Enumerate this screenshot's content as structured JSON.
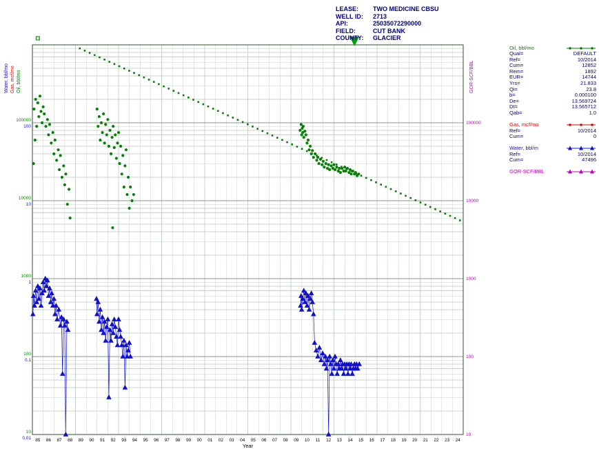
{
  "header": {
    "rows": [
      {
        "label": "LEASE:",
        "value": "TWO MEDICINE CBSU"
      },
      {
        "label": "WELL ID:",
        "value": "2713"
      },
      {
        "label": "API:",
        "value": "25035072290000"
      },
      {
        "label": "FIELD:",
        "value": "CUT BANK"
      },
      {
        "label": "COUNTY:",
        "value": "GLACIER"
      }
    ]
  },
  "legend": {
    "sections": [
      {
        "id": "oil",
        "name": "Oil, bbl/mo",
        "color": "#058205",
        "marker": "line-dot",
        "rows": [
          {
            "label": "Qual=",
            "value": "DEFAULT"
          },
          {
            "label": "Ref=",
            "value": "10/2014"
          },
          {
            "label": "Cum=",
            "value": "12852"
          },
          {
            "label": "Rem=",
            "value": "1892"
          },
          {
            "label": "EUR=",
            "value": "14744"
          },
          {
            "label": "Yrs=",
            "value": "21.833"
          },
          {
            "label": "Qi=",
            "value": "23.8"
          },
          {
            "label": "b=",
            "value": "0.000100"
          },
          {
            "label": "De=",
            "value": "13.569724"
          },
          {
            "label": "Dt=",
            "value": "13.565712"
          },
          {
            "label": "Qab=",
            "value": "1.0"
          }
        ]
      },
      {
        "id": "gas",
        "name": "Gas, mcf/mo",
        "color": "#DD0000",
        "marker": "line-dot",
        "rows": [
          {
            "label": "Ref=",
            "value": "10/2014"
          },
          {
            "label": "Cum=",
            "value": "0"
          }
        ]
      },
      {
        "id": "water",
        "name": "Water, bbl/m",
        "color": "#1111CC",
        "marker": "line-triangle",
        "rows": [
          {
            "label": "Ref=",
            "value": "10/2014"
          },
          {
            "label": "Cum=",
            "value": "47496"
          }
        ]
      },
      {
        "id": "gor",
        "name": "GOR-SCF/BBL",
        "color": "#BB00BB",
        "marker": "line-triangle",
        "rows": []
      }
    ]
  },
  "chart_data": {
    "type": "scatter",
    "xlabel": "Year",
    "gridlines": true,
    "legend_position": "right",
    "x_axis": {
      "min": 1985,
      "max": 2025,
      "tick_labels": [
        "85",
        "86",
        "87",
        "88",
        "89",
        "90",
        "91",
        "92",
        "93",
        "94",
        "95",
        "96",
        "97",
        "98",
        "99",
        "00",
        "01",
        "02",
        "03",
        "04",
        "05",
        "06",
        "07",
        "08",
        "09",
        "10",
        "11",
        "12",
        "13",
        "14",
        "15",
        "16",
        "17",
        "18",
        "19",
        "20",
        "21",
        "22",
        "23",
        "24"
      ]
    },
    "y_axes": [
      {
        "id": "water",
        "title": "Water, bbl/mo",
        "color": "#1111CC",
        "scale": "log",
        "side": "left",
        "min": 0.01,
        "max": 1000,
        "ticks": [
          "100",
          "10",
          "1",
          "0.1",
          "0.01"
        ]
      },
      {
        "id": "gas",
        "title": "Gas, mcf/mo",
        "color": "#DD0000",
        "scale": "log",
        "side": "left",
        "min": 0.01,
        "max": 1000,
        "ticks": []
      },
      {
        "id": "oil",
        "title": "Oil, bbl/mo",
        "color": "#058205",
        "scale": "log",
        "side": "left",
        "min": 10,
        "max": 1000000,
        "ticks": [
          "100000",
          "10000",
          "1000",
          "100",
          "10"
        ]
      },
      {
        "id": "gor",
        "title": "GOR-SCF/BBL",
        "color": "#BB00BB",
        "scale": "log",
        "side": "right",
        "min": 10,
        "max": 1000000,
        "ticks": [
          "100000",
          "10000",
          "1000",
          "100",
          "10"
        ]
      }
    ],
    "series": [
      {
        "name": "Oil rate",
        "axis": "oil",
        "marker": "dot",
        "color": "#058205",
        "points": [
          [
            1985.1,
            30000
          ],
          [
            1985.15,
            150000
          ],
          [
            1985.25,
            60000
          ],
          [
            1985.3,
            200000
          ],
          [
            1985.4,
            90000
          ],
          [
            1985.5,
            180000
          ],
          [
            1985.6,
            120000
          ],
          [
            1985.7,
            220000
          ],
          [
            1985.8,
            140000
          ],
          [
            1985.9,
            100000
          ],
          [
            1986.0,
            160000
          ],
          [
            1986.1,
            130000
          ],
          [
            1986.25,
            90000
          ],
          [
            1986.4,
            110000
          ],
          [
            1986.5,
            70000
          ],
          [
            1986.6,
            95000
          ],
          [
            1986.75,
            55000
          ],
          [
            1986.9,
            75000
          ],
          [
            1987.0,
            40000
          ],
          [
            1987.1,
            60000
          ],
          [
            1987.25,
            33000
          ],
          [
            1987.4,
            45000
          ],
          [
            1987.5,
            25000
          ],
          [
            1987.6,
            38000
          ],
          [
            1987.75,
            20000
          ],
          [
            1987.9,
            28000
          ],
          [
            1988.0,
            16000
          ],
          [
            1988.1,
            22000
          ],
          [
            1988.25,
            9000
          ],
          [
            1988.4,
            14000
          ],
          [
            1988.5,
            6000
          ],
          [
            1991.0,
            150000
          ],
          [
            1991.1,
            90000
          ],
          [
            1991.2,
            120000
          ],
          [
            1991.3,
            60000
          ],
          [
            1991.4,
            100000
          ],
          [
            1991.5,
            75000
          ],
          [
            1991.6,
            130000
          ],
          [
            1991.7,
            55000
          ],
          [
            1991.8,
            95000
          ],
          [
            1991.9,
            70000
          ],
          [
            1992.0,
            110000
          ],
          [
            1992.1,
            50000
          ],
          [
            1992.2,
            80000
          ],
          [
            1992.3,
            40000
          ],
          [
            1992.4,
            65000
          ],
          [
            1992.45,
            4500
          ],
          [
            1992.5,
            90000
          ],
          [
            1992.6,
            48000
          ],
          [
            1992.7,
            70000
          ],
          [
            1992.8,
            35000
          ],
          [
            1992.9,
            55000
          ],
          [
            1993.0,
            75000
          ],
          [
            1993.1,
            30000
          ],
          [
            1993.2,
            50000
          ],
          [
            1993.3,
            22000
          ],
          [
            1993.4,
            38000
          ],
          [
            1993.5,
            15000
          ],
          [
            1993.6,
            28000
          ],
          [
            1993.7,
            45000
          ],
          [
            1993.8,
            12000
          ],
          [
            1993.9,
            20000
          ],
          [
            1994.0,
            8000
          ],
          [
            1994.1,
            15000
          ],
          [
            1994.25,
            10000
          ],
          [
            1994.4,
            12000
          ],
          [
            2009.85,
            80000
          ],
          [
            2009.95,
            95000
          ],
          [
            2010.0,
            70000
          ],
          [
            2010.05,
            85000
          ],
          [
            2010.1,
            75000
          ],
          [
            2010.15,
            90000
          ],
          [
            2010.2,
            65000
          ],
          [
            2010.3,
            78000
          ],
          [
            2010.4,
            70000
          ],
          [
            2010.5,
            55000
          ],
          [
            2010.6,
            60000
          ],
          [
            2010.7,
            45000
          ],
          [
            2010.8,
            50000
          ],
          [
            2010.9,
            40000
          ],
          [
            2011.0,
            44000
          ],
          [
            2011.1,
            36000
          ],
          [
            2011.25,
            40000
          ],
          [
            2011.4,
            33000
          ],
          [
            2011.5,
            36000
          ],
          [
            2011.6,
            30000
          ],
          [
            2011.75,
            34000
          ],
          [
            2011.9,
            29000
          ],
          [
            2012.0,
            32000
          ],
          [
            2012.1,
            27000
          ],
          [
            2012.25,
            30000
          ],
          [
            2012.4,
            26000
          ],
          [
            2012.5,
            29000
          ],
          [
            2012.6,
            25000
          ],
          [
            2012.75,
            28000
          ],
          [
            2012.9,
            26000
          ],
          [
            2013.0,
            29000
          ],
          [
            2013.1,
            25000
          ],
          [
            2013.25,
            27000
          ],
          [
            2013.4,
            24000
          ],
          [
            2013.5,
            26000
          ],
          [
            2013.6,
            23000
          ],
          [
            2013.75,
            26000
          ],
          [
            2013.9,
            24000
          ],
          [
            2014.0,
            27000
          ],
          [
            2014.1,
            24000
          ],
          [
            2014.25,
            26000
          ],
          [
            2014.4,
            23000
          ],
          [
            2014.5,
            25000
          ],
          [
            2014.6,
            22000
          ],
          [
            2014.75,
            24000
          ],
          [
            2014.9,
            22000
          ],
          [
            2015.0,
            23000
          ],
          [
            2015.15,
            21000
          ],
          [
            2015.3,
            22000
          ]
        ]
      },
      {
        "name": "Oil decline forecast",
        "axis": "oil",
        "marker": "square",
        "color": "#067806",
        "line": "log-linear",
        "start": [
          1989.4,
          900000
        ],
        "end": [
          2024.7,
          5600
        ],
        "marker_count": 78
      },
      {
        "name": "Water rate",
        "axis": "water",
        "marker": "triangle",
        "color": "#1111CC",
        "connect": true,
        "points": [
          [
            1985.05,
            0.35
          ],
          [
            1985.1,
            0.6
          ],
          [
            1985.2,
            0.45
          ],
          [
            1985.3,
            0.7
          ],
          [
            1985.4,
            0.5
          ],
          [
            1985.5,
            0.8
          ],
          [
            1985.6,
            0.55
          ],
          [
            1985.7,
            0.75
          ],
          [
            1985.8,
            0.45
          ],
          [
            1985.9,
            0.65
          ],
          [
            1986.0,
            0.9
          ],
          [
            1986.1,
            0.7
          ],
          [
            1986.2,
            1.0
          ],
          [
            1986.3,
            0.8
          ],
          [
            1986.4,
            0.95
          ],
          [
            1986.5,
            0.6
          ],
          [
            1986.6,
            0.75
          ],
          [
            1986.7,
            0.5
          ],
          [
            1986.8,
            0.65
          ],
          [
            1986.9,
            0.45
          ],
          [
            1987.0,
            0.55
          ],
          [
            1987.1,
            0.35
          ],
          [
            1987.2,
            0.45
          ],
          [
            1987.3,
            0.3
          ],
          [
            1987.45,
            0.4
          ],
          [
            1987.6,
            0.25
          ],
          [
            1987.7,
            0.32
          ],
          [
            1987.8,
            0.06
          ],
          [
            1987.9,
            0.3
          ],
          [
            1988.0,
            0.25
          ],
          [
            1988.1,
            0.01
          ],
          [
            1988.2,
            0.28
          ],
          [
            1988.3,
            0.22
          ],
          [
            1990.95,
            0.55
          ],
          [
            1991.0,
            0.35
          ],
          [
            1991.1,
            0.5
          ],
          [
            1991.2,
            0.28
          ],
          [
            1991.3,
            0.4
          ],
          [
            1991.4,
            0.22
          ],
          [
            1991.5,
            0.32
          ],
          [
            1991.6,
            0.2
          ],
          [
            1991.7,
            0.28
          ],
          [
            1991.8,
            0.16
          ],
          [
            1991.9,
            0.24
          ],
          [
            1992.0,
            0.3
          ],
          [
            1992.1,
            0.03
          ],
          [
            1992.2,
            0.22
          ],
          [
            1992.3,
            0.16
          ],
          [
            1992.4,
            0.26
          ],
          [
            1992.5,
            0.2
          ],
          [
            1992.6,
            0.3
          ],
          [
            1992.7,
            0.24
          ],
          [
            1992.8,
            0.18
          ],
          [
            1992.9,
            0.14
          ],
          [
            1993.0,
            0.3
          ],
          [
            1993.1,
            0.22
          ],
          [
            1993.2,
            0.18
          ],
          [
            1993.3,
            0.14
          ],
          [
            1993.4,
            0.1
          ],
          [
            1993.5,
            0.16
          ],
          [
            1993.6,
            0.04
          ],
          [
            1993.7,
            0.14
          ],
          [
            1993.8,
            0.1
          ],
          [
            1993.9,
            0.12
          ],
          [
            1994.0,
            0.15
          ],
          [
            1994.1,
            0.1
          ],
          [
            2009.9,
            0.45
          ],
          [
            2009.95,
            0.6
          ],
          [
            2010.0,
            0.4
          ],
          [
            2010.1,
            0.55
          ],
          [
            2010.2,
            0.7
          ],
          [
            2010.3,
            0.5
          ],
          [
            2010.4,
            0.65
          ],
          [
            2010.5,
            0.45
          ],
          [
            2010.6,
            0.6
          ],
          [
            2010.7,
            0.4
          ],
          [
            2010.8,
            0.55
          ],
          [
            2010.9,
            0.65
          ],
          [
            2011.0,
            0.5
          ],
          [
            2011.1,
            0.35
          ],
          [
            2011.2,
            0.15
          ],
          [
            2011.35,
            0.12
          ],
          [
            2011.5,
            0.1
          ],
          [
            2011.65,
            0.13
          ],
          [
            2011.8,
            0.09
          ],
          [
            2011.95,
            0.11
          ],
          [
            2012.1,
            0.08
          ],
          [
            2012.2,
            0.1
          ],
          [
            2012.3,
            0.07
          ],
          [
            2012.4,
            0.09
          ],
          [
            2012.5,
            0.01
          ],
          [
            2012.6,
            0.1
          ],
          [
            2012.7,
            0.08
          ],
          [
            2012.8,
            0.06
          ],
          [
            2012.9,
            0.09
          ],
          [
            2013.0,
            0.07
          ],
          [
            2013.1,
            0.1
          ],
          [
            2013.2,
            0.08
          ],
          [
            2013.3,
            0.06
          ],
          [
            2013.4,
            0.08
          ],
          [
            2013.5,
            0.07
          ],
          [
            2013.6,
            0.09
          ],
          [
            2013.7,
            0.07
          ],
          [
            2013.8,
            0.08
          ],
          [
            2013.9,
            0.06
          ],
          [
            2014.0,
            0.08
          ],
          [
            2014.1,
            0.07
          ],
          [
            2014.2,
            0.08
          ],
          [
            2014.3,
            0.06
          ],
          [
            2014.4,
            0.08
          ],
          [
            2014.5,
            0.07
          ],
          [
            2014.6,
            0.08
          ],
          [
            2014.7,
            0.06
          ],
          [
            2014.8,
            0.07
          ],
          [
            2014.9,
            0.08
          ],
          [
            2015.0,
            0.07
          ],
          [
            2015.1,
            0.08
          ],
          [
            2015.2,
            0.07
          ],
          [
            2015.35,
            0.08
          ]
        ]
      }
    ],
    "annotations": [
      {
        "id": "ref-date-marker",
        "type": "down-triangle",
        "year": 2014.9,
        "color": "#00A000",
        "position": "top"
      },
      {
        "id": "top-left-marker",
        "type": "small-square",
        "year": 1985.5,
        "color": "#058205",
        "position": "top"
      }
    ]
  }
}
